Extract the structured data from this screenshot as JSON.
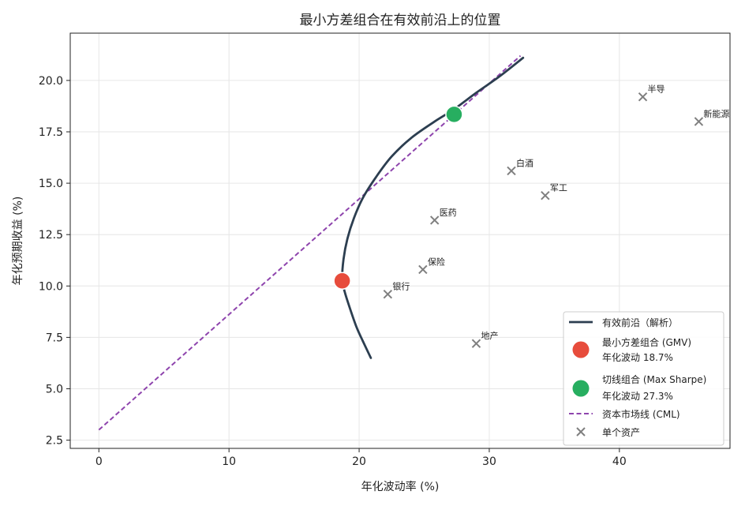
{
  "chart_data": {
    "type": "scatter",
    "title": "最小方差组合在有效前沿上的位置",
    "xlabel": "年化波动率 (%)",
    "ylabel": "年化预期收益 (%)",
    "xlim": [
      -2.2,
      48.5
    ],
    "ylim": [
      2.1,
      22.3
    ],
    "xticks": [
      0,
      10,
      20,
      30,
      40
    ],
    "yticks": [
      2.5,
      5.0,
      7.5,
      10.0,
      12.5,
      15.0,
      17.5,
      20.0
    ],
    "xtick_labels": [
      "0",
      "10",
      "20",
      "30",
      "40"
    ],
    "ytick_labels": [
      "2.5",
      "5.0",
      "7.5",
      "10.0",
      "12.5",
      "15.0",
      "17.5",
      "20.0"
    ],
    "grid": true,
    "legend_position": "lower-right",
    "frontier": {
      "name": "有效前沿（解析）",
      "color": "#2c3e50",
      "points": [
        [
          20.9,
          6.5
        ],
        [
          20.3,
          7.3
        ],
        [
          19.8,
          8.0
        ],
        [
          19.3,
          8.9
        ],
        [
          18.9,
          9.7
        ],
        [
          18.7,
          10.3
        ],
        [
          18.8,
          11.3
        ],
        [
          19.1,
          12.3
        ],
        [
          19.6,
          13.3
        ],
        [
          20.3,
          14.3
        ],
        [
          21.3,
          15.3
        ],
        [
          22.5,
          16.3
        ],
        [
          24.0,
          17.2
        ],
        [
          25.8,
          18.0
        ],
        [
          27.3,
          18.6
        ],
        [
          29.0,
          19.4
        ],
        [
          30.8,
          20.2
        ],
        [
          32.6,
          21.1
        ]
      ]
    },
    "gmv": {
      "name": "最小方差组合 (GMV)",
      "sublabel": "年化波动 18.7%",
      "x": 18.7,
      "y": 10.25,
      "color": "#e74c3c"
    },
    "tangency": {
      "name": "切线组合 (Max Sharpe)",
      "sublabel": "年化波动 27.3%",
      "x": 27.3,
      "y": 18.35,
      "color": "#27ae60"
    },
    "cml": {
      "name": "资本市场线 (CML)",
      "x0": 0,
      "y0": 3.0,
      "x1": 32.4,
      "y1": 21.2,
      "color": "#8e44ad"
    },
    "assets": {
      "name": "单个资产",
      "color": "#7f7f7f",
      "points": [
        {
          "label": "银行",
          "x": 22.2,
          "y": 9.6
        },
        {
          "label": "保险",
          "x": 24.9,
          "y": 10.8
        },
        {
          "label": "医药",
          "x": 25.8,
          "y": 13.2
        },
        {
          "label": "地产",
          "x": 29.0,
          "y": 7.2
        },
        {
          "label": "白酒",
          "x": 31.7,
          "y": 15.6
        },
        {
          "label": "军工",
          "x": 34.3,
          "y": 14.4
        },
        {
          "label": "半导",
          "x": 41.8,
          "y": 19.2
        },
        {
          "label": "新能源",
          "x": 46.1,
          "y": 18.0
        }
      ]
    }
  }
}
